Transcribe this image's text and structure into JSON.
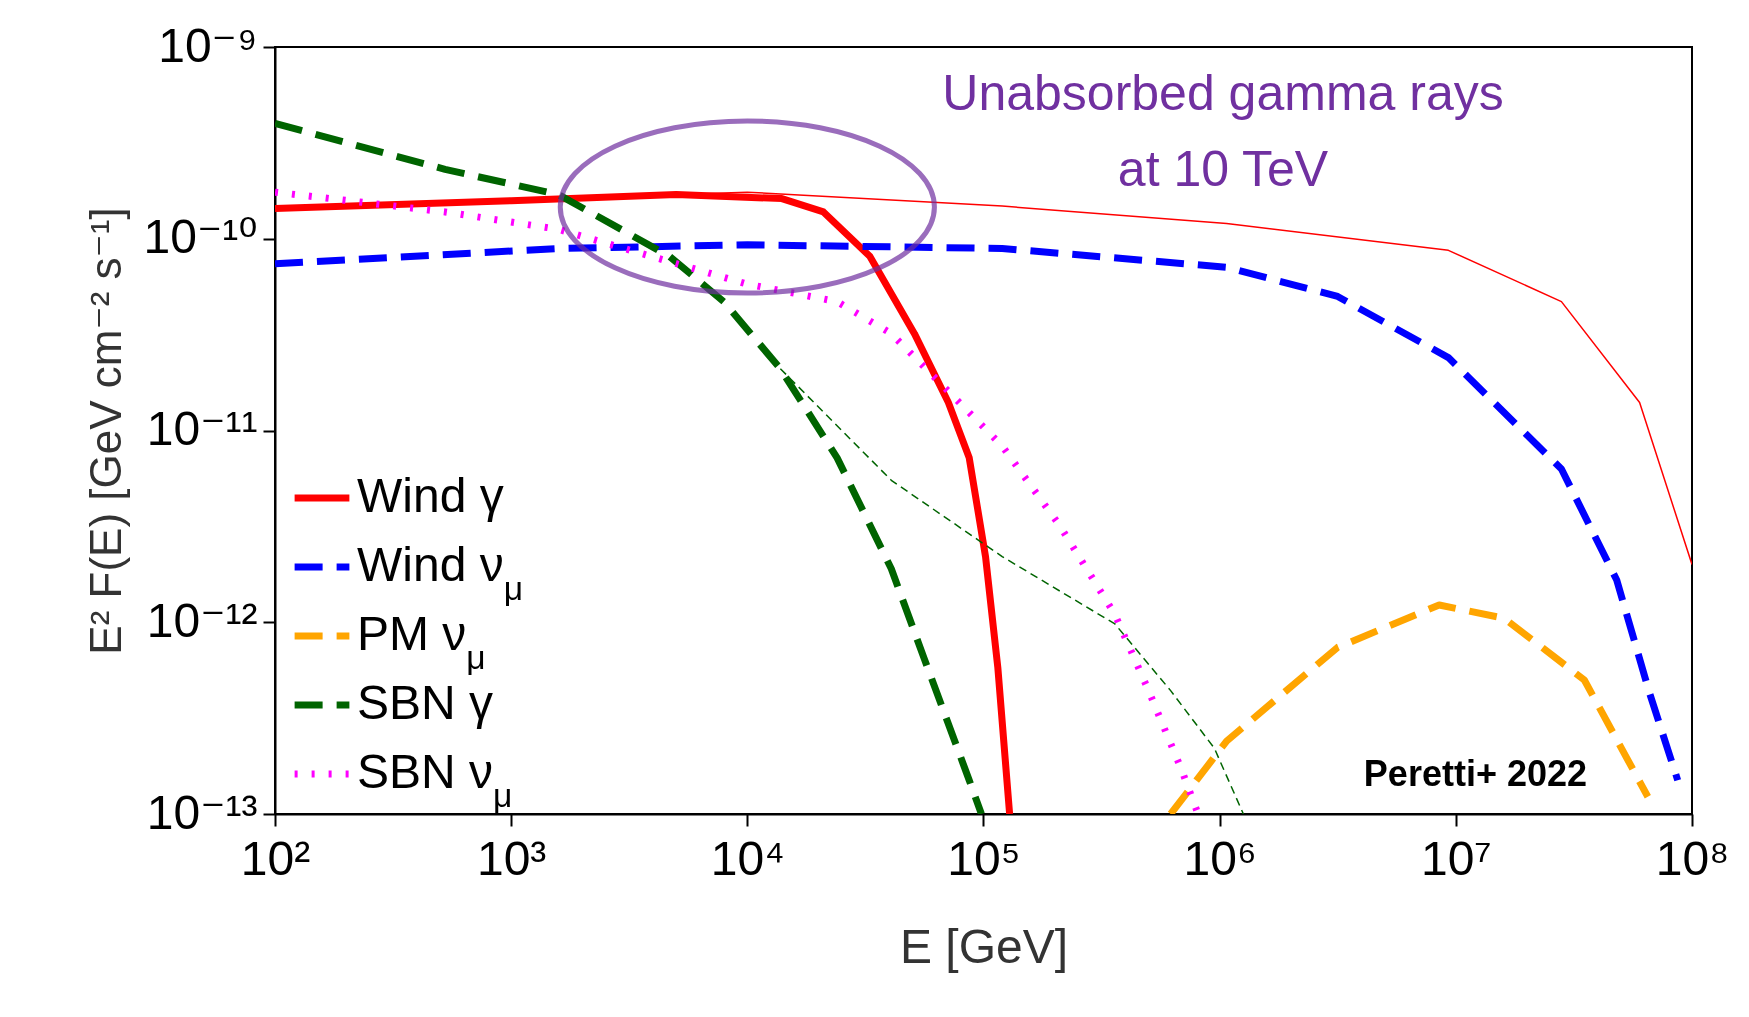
{
  "chart_data": {
    "type": "line",
    "xlabel": "E [GeV]",
    "ylabel": "E² F(E) [GeV cm⁻² s⁻¹]",
    "log": "xy",
    "grid": false,
    "legend": "bottom left",
    "marker": "none",
    "xlim": [
      100,
      100000000
    ],
    "ylim": [
      1e-13,
      1e-09
    ],
    "xticks": [
      {
        "value": 100,
        "label": "10²"
      },
      {
        "value": 1000,
        "label": "10³"
      },
      {
        "value": 10000,
        "label": "10⁴"
      },
      {
        "value": 100000,
        "label": "10⁵"
      },
      {
        "value": 1000000,
        "label": "10⁶"
      },
      {
        "value": 10000000,
        "label": "10⁷"
      },
      {
        "value": 100000000,
        "label": "10⁸"
      }
    ],
    "yticks": [
      {
        "value": 1e-13,
        "label": "10⁻¹³"
      },
      {
        "value": 1e-12,
        "label": "10⁻¹²"
      },
      {
        "value": 1e-11,
        "label": "10⁻¹¹"
      },
      {
        "value": 1e-10,
        "label": "10⁻¹⁰"
      },
      {
        "value": 1e-09,
        "label": "10⁻⁹"
      }
    ],
    "series": [
      {
        "name": "Wind γ",
        "color": "#ff0000",
        "line_style": "solid",
        "x": [
          100,
          1000,
          5000,
          14000,
          21000,
          33000,
          51000,
          71000,
          87000,
          102000,
          115000,
          129000
        ],
        "values": [
          1.44e-10,
          1.58e-10,
          1.7e-10,
          1.62e-10,
          1.38e-10,
          8.1e-11,
          3.2e-11,
          1.4e-11,
          7.2e-12,
          2.2e-12,
          5.8e-13,
          1e-13
        ]
      },
      {
        "name": "Wind ν$_{μ}$",
        "color": "#0000ff",
        "line_style": "dashed",
        "x": [
          100,
          1585,
          10000,
          120000,
          1070000,
          3160000,
          9300000,
          28000000,
          48000000,
          66000000,
          87000000
        ],
        "values": [
          7.4e-11,
          8.9e-11,
          9.3e-11,
          8.9e-11,
          7.1e-11,
          5e-11,
          2.4e-11,
          6.3e-12,
          1.66e-12,
          4.3e-13,
          1.5e-13
        ]
      },
      {
        "name": "PM ν$_{μ}$",
        "color": "#ffa500",
        "line_style": "dashed",
        "x": [
          620000,
          1070000,
          3160000,
          8500000,
          16000000,
          35000000,
          65000000
        ],
        "values": [
          1e-13,
          2.4e-13,
          7.4e-13,
          1.23e-12,
          1.05e-12,
          5e-13,
          1.23e-13
        ]
      },
      {
        "name": "SBN γ",
        "color": "#006400",
        "line_style": "dashed",
        "x": [
          100,
          525,
          1585,
          4677,
          7943,
          13800,
          24000,
          40700,
          56000,
          87000,
          98000
        ],
        "values": [
          4e-10,
          2.3e-10,
          1.7e-10,
          8.1e-11,
          4.7e-11,
          2.1e-11,
          7.2e-12,
          1.9e-12,
          6.5e-13,
          1.5e-13,
          1e-13
        ]
      },
      {
        "name": "SBN ν$_{μ}$",
        "color": "#ff00ff",
        "line_style": "dotted",
        "x": [
          100,
          525,
          1585,
          4677,
          10000,
          24000,
          40700,
          71000,
          120000,
          210000,
          360000,
          500000,
          690000,
          810000
        ],
        "values": [
          1.75e-10,
          1.38e-10,
          1.12e-10,
          7.6e-11,
          5.8e-11,
          4.7e-11,
          3.2e-11,
          1.6e-11,
          8.3e-12,
          3.2e-12,
          1.1e-12,
          4.4e-13,
          1.7e-13,
          1e-13
        ]
      },
      {
        "color": "#ff0000",
        "line_style": "solid",
        "x": [
          5000,
          10000,
          120000,
          1070000,
          9300000,
          28000000,
          60000000,
          100000000
        ],
        "values": [
          1.7e-10,
          1.75e-10,
          1.48e-10,
          1.2e-10,
          8.7e-11,
          4.7e-11,
          1.4e-11,
          2e-12
        ]
      },
      {
        "color": "#006400",
        "line_style": "dashed",
        "x": [
          13800,
          40700,
          120000,
          360000,
          620000,
          950000,
          1260000
        ],
        "values": [
          2.1e-11,
          5.5e-12,
          2.2e-12,
          9.8e-13,
          4.4e-13,
          2.2e-13,
          1e-13
        ]
      }
    ],
    "annotations": [
      "Unabsorbed gamma rays at 10 TeV",
      "Peretti+ 2022"
    ]
  }
}
